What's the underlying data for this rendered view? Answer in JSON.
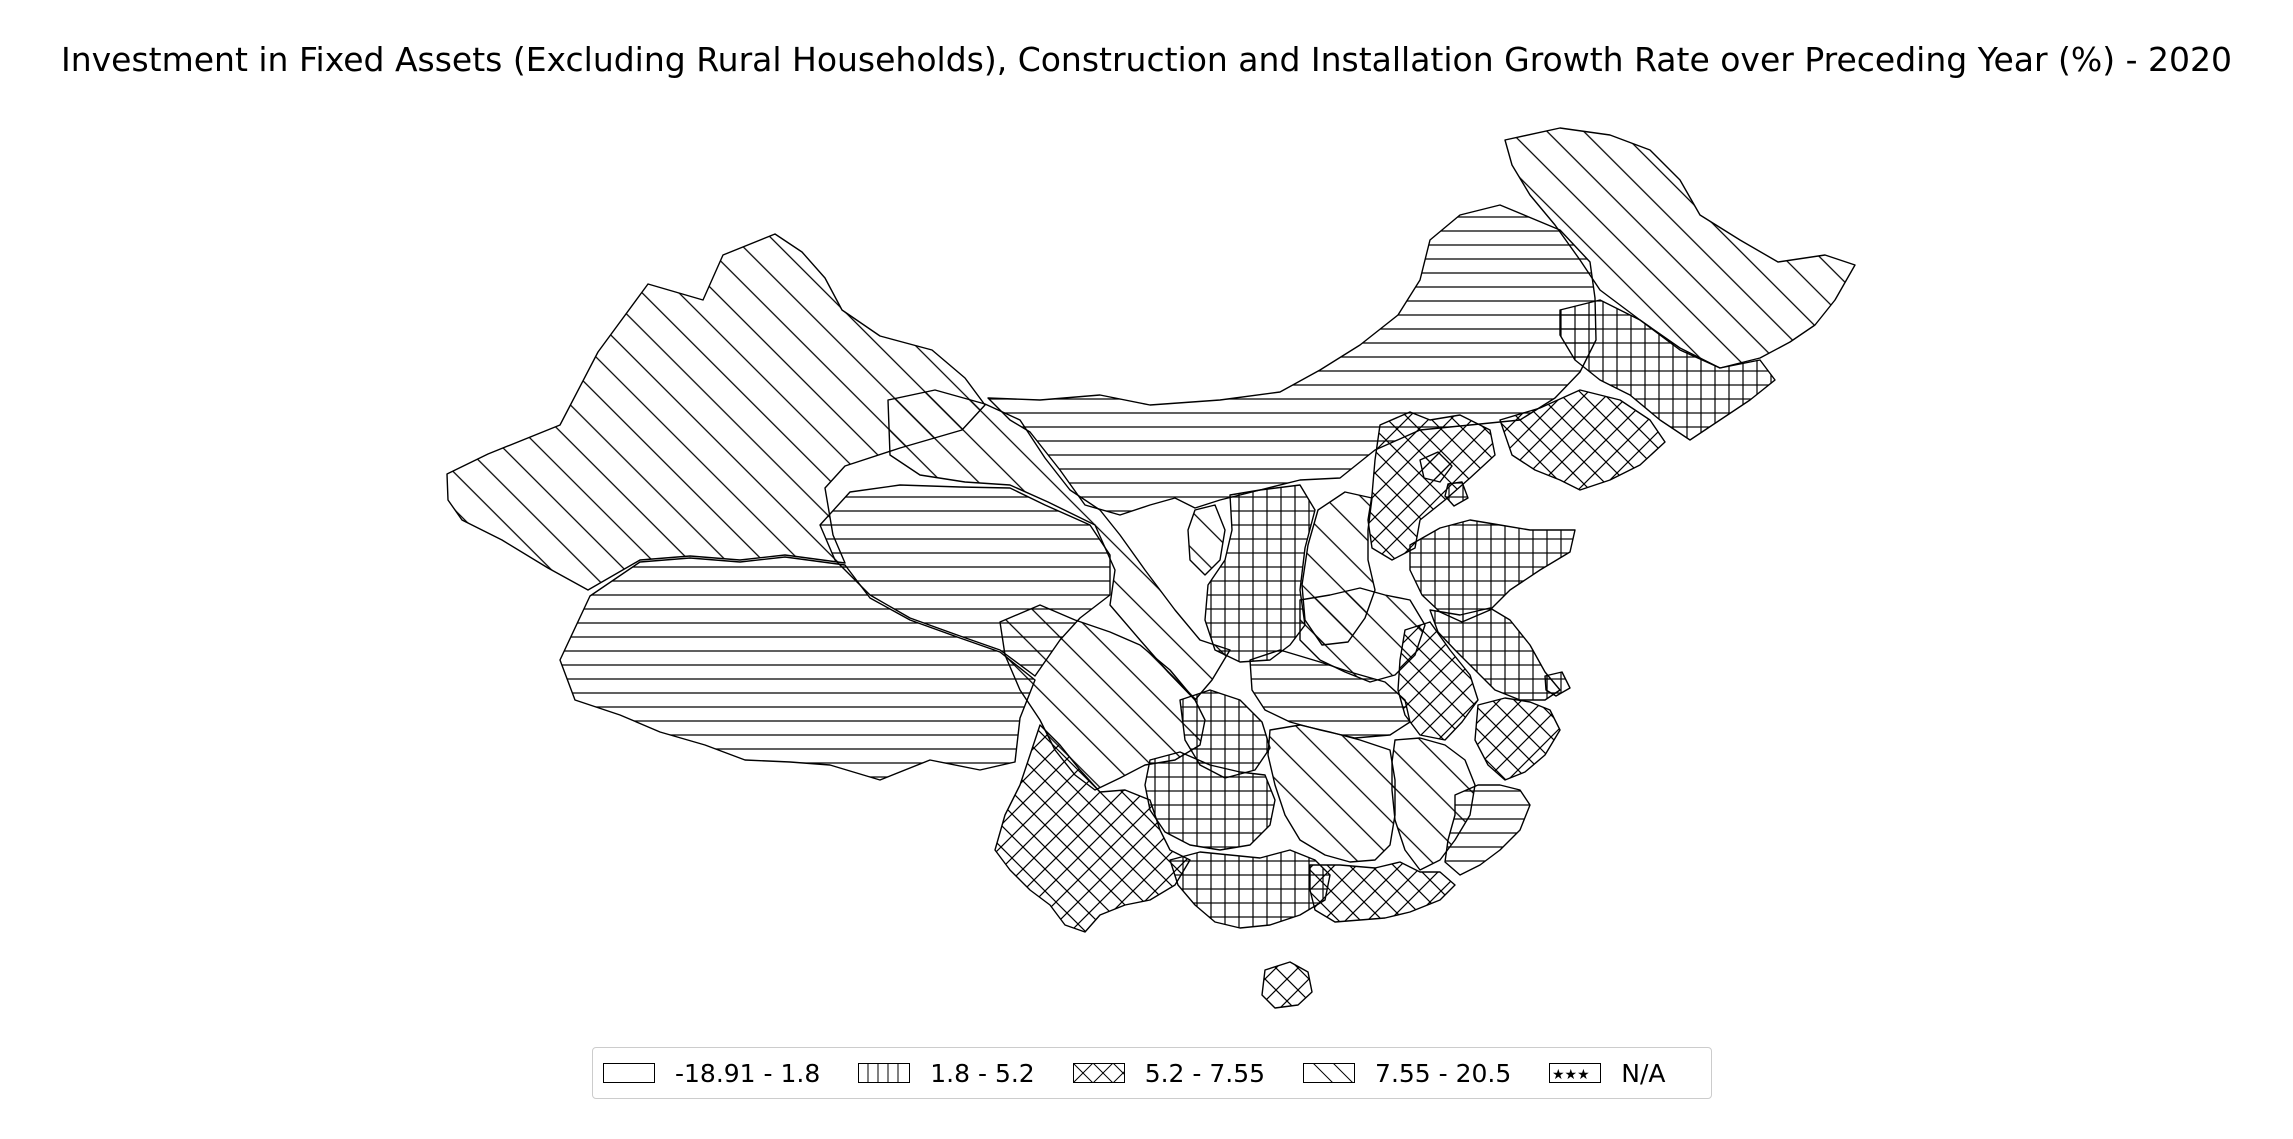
{
  "map": {
    "title": "Investment in Fixed Assets (Excluding Rural Households), Construction and Installation Growth Rate over Preceding Year (%) - 2020",
    "legend": [
      {
        "label": "-18.91 - 1.8",
        "pattern": "horizontal-lines"
      },
      {
        "label": "1.8 - 5.2",
        "pattern": "grid"
      },
      {
        "label": "5.2 - 7.55",
        "pattern": "cross-hatch"
      },
      {
        "label": "7.55 - 20.5",
        "pattern": "diagonal-lines"
      },
      {
        "label": "N/A",
        "pattern": "stars"
      }
    ],
    "regions": [
      {
        "name": "Xinjiang",
        "class": 3
      },
      {
        "name": "Tibet",
        "class": 0
      },
      {
        "name": "Qinghai",
        "class": 0
      },
      {
        "name": "Gansu",
        "class": 3
      },
      {
        "name": "Inner Mongolia",
        "class": 0
      },
      {
        "name": "Heilongjiang",
        "class": 3
      },
      {
        "name": "Jilin",
        "class": 1
      },
      {
        "name": "Liaoning",
        "class": 2
      },
      {
        "name": "Hebei",
        "class": 2
      },
      {
        "name": "Beijing",
        "class": 2
      },
      {
        "name": "Tianjin",
        "class": 1
      },
      {
        "name": "Shanxi",
        "class": 3
      },
      {
        "name": "Shandong",
        "class": 1
      },
      {
        "name": "Ningxia",
        "class": 3
      },
      {
        "name": "Shaanxi",
        "class": 1
      },
      {
        "name": "Henan",
        "class": 3
      },
      {
        "name": "Jiangsu",
        "class": 1
      },
      {
        "name": "Anhui",
        "class": 2
      },
      {
        "name": "Shanghai",
        "class": 1
      },
      {
        "name": "Sichuan",
        "class": 3
      },
      {
        "name": "Chongqing",
        "class": 1
      },
      {
        "name": "Hubei",
        "class": 0
      },
      {
        "name": "Zhejiang",
        "class": 2
      },
      {
        "name": "Jiangxi",
        "class": 3
      },
      {
        "name": "Hunan",
        "class": 3
      },
      {
        "name": "Guizhou",
        "class": 1
      },
      {
        "name": "Yunnan",
        "class": 2
      },
      {
        "name": "Guangxi",
        "class": 1
      },
      {
        "name": "Guangdong",
        "class": 2
      },
      {
        "name": "Fujian",
        "class": 0
      },
      {
        "name": "Hainan",
        "class": 2
      }
    ]
  }
}
